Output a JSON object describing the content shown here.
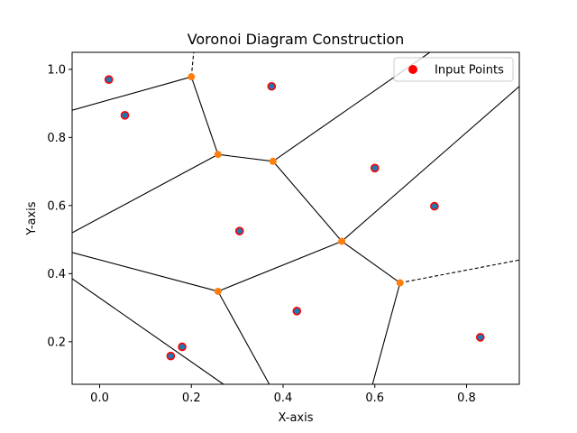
{
  "chart_data": {
    "type": "scatter",
    "title": "Voronoi Diagram Construction",
    "xlabel": "X-axis",
    "ylabel": "Y-axis",
    "xlim": [
      -0.06,
      0.915
    ],
    "ylim": [
      0.075,
      1.05
    ],
    "xticks": [
      0.0,
      0.2,
      0.4,
      0.6,
      0.8
    ],
    "xtick_labels": [
      "0.0",
      "0.2",
      "0.4",
      "0.6",
      "0.8"
    ],
    "yticks": [
      0.2,
      0.4,
      0.6,
      0.8,
      1.0
    ],
    "ytick_labels": [
      "0.2",
      "0.4",
      "0.6",
      "0.8",
      "1.0"
    ],
    "legend": {
      "position": "top-right",
      "entries": [
        "Input Points"
      ]
    },
    "colors": {
      "input_point_fill": "#1f77b4",
      "input_point_edge": "#ff0000",
      "legend_marker": "#ff0000",
      "vertex": "#ff7f0e",
      "edge": "#000000"
    },
    "input_points": [
      [
        0.02,
        0.97
      ],
      [
        0.055,
        0.865
      ],
      [
        0.375,
        0.95
      ],
      [
        0.6,
        0.71
      ],
      [
        0.73,
        0.598
      ],
      [
        0.305,
        0.525
      ],
      [
        0.43,
        0.29
      ],
      [
        0.83,
        0.213
      ],
      [
        0.18,
        0.185
      ],
      [
        0.155,
        0.158
      ]
    ],
    "voronoi_vertices": [
      [
        0.2,
        0.978
      ],
      [
        0.258,
        0.75
      ],
      [
        0.378,
        0.73
      ],
      [
        0.528,
        0.495
      ],
      [
        0.258,
        0.348
      ],
      [
        0.655,
        0.373
      ]
    ],
    "edges": [
      {
        "from": [
          0.2,
          0.978
        ],
        "to": [
          -0.06,
          0.88
        ],
        "style": "solid"
      },
      {
        "from": [
          0.2,
          0.978
        ],
        "to": [
          0.205,
          1.05
        ],
        "style": "dashed"
      },
      {
        "from": [
          0.2,
          0.978
        ],
        "to": [
          0.258,
          0.75
        ],
        "style": "solid"
      },
      {
        "from": [
          0.258,
          0.75
        ],
        "to": [
          0.378,
          0.73
        ],
        "style": "solid"
      },
      {
        "from": [
          0.258,
          0.75
        ],
        "to": [
          -0.06,
          0.52
        ],
        "style": "solid"
      },
      {
        "from": [
          0.378,
          0.73
        ],
        "to": [
          0.72,
          1.05
        ],
        "style": "solid"
      },
      {
        "from": [
          0.378,
          0.73
        ],
        "to": [
          0.528,
          0.495
        ],
        "style": "solid"
      },
      {
        "from": [
          0.528,
          0.495
        ],
        "to": [
          0.258,
          0.348
        ],
        "style": "solid"
      },
      {
        "from": [
          0.528,
          0.495
        ],
        "to": [
          0.655,
          0.373
        ],
        "style": "solid"
      },
      {
        "from": [
          0.528,
          0.495
        ],
        "to": [
          0.915,
          0.95
        ],
        "style": "solid"
      },
      {
        "from": [
          0.258,
          0.348
        ],
        "to": [
          -0.06,
          0.462
        ],
        "style": "solid"
      },
      {
        "from": [
          0.258,
          0.348
        ],
        "to": [
          0.37,
          0.075
        ],
        "style": "solid"
      },
      {
        "from": [
          0.655,
          0.373
        ],
        "to": [
          0.595,
          0.075
        ],
        "style": "solid"
      },
      {
        "from": [
          0.655,
          0.373
        ],
        "to": [
          0.915,
          0.44
        ],
        "style": "dashed"
      },
      {
        "from": [
          -0.06,
          0.385
        ],
        "to": [
          0.27,
          0.075
        ],
        "style": "solid"
      }
    ]
  }
}
